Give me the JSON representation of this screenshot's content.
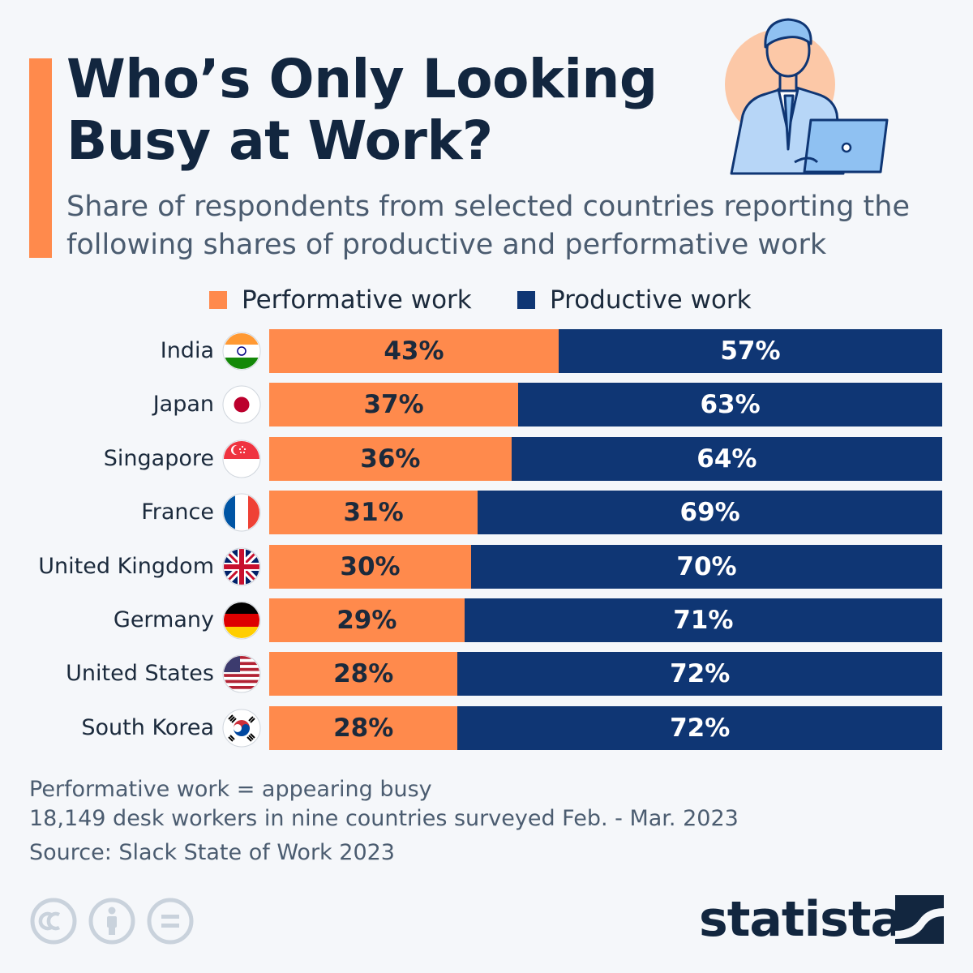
{
  "title": "Who’s Only Looking Busy at Work?",
  "subtitle": "Share of respondents from selected countries reporting the following shares of productive and performative work",
  "legend": {
    "performative": "Performative work",
    "productive": "Productive work"
  },
  "colors": {
    "performative": "#ff8a4c",
    "productive": "#0f3674",
    "accent": "#ff8a4c"
  },
  "chart_data": {
    "type": "bar",
    "orientation": "horizontal-stacked-100",
    "categories": [
      "India",
      "Japan",
      "Singapore",
      "France",
      "United Kingdom",
      "Germany",
      "United States",
      "South Korea"
    ],
    "series": [
      {
        "name": "Performative work",
        "values": [
          43,
          37,
          36,
          31,
          30,
          29,
          28,
          28
        ]
      },
      {
        "name": "Productive work",
        "values": [
          57,
          63,
          64,
          69,
          70,
          71,
          72,
          72
        ]
      }
    ],
    "value_suffix": "%",
    "xlim": [
      0,
      100
    ],
    "grid": false,
    "legend_position": "top"
  },
  "flags": [
    "flag-india-icon",
    "flag-japan-icon",
    "flag-singapore-icon",
    "flag-france-icon",
    "flag-uk-icon",
    "flag-germany-icon",
    "flag-usa-icon",
    "flag-south-korea-icon"
  ],
  "notes": {
    "definition": "Performative work = appearing busy",
    "survey": "18,149 desk workers in nine countries surveyed Feb. - Mar. 2023",
    "source": "Source: Slack State of Work 2023"
  },
  "brand": {
    "name": "statista"
  },
  "license_icons": [
    "cc-icon",
    "attribution-icon",
    "no-derivatives-icon"
  ]
}
